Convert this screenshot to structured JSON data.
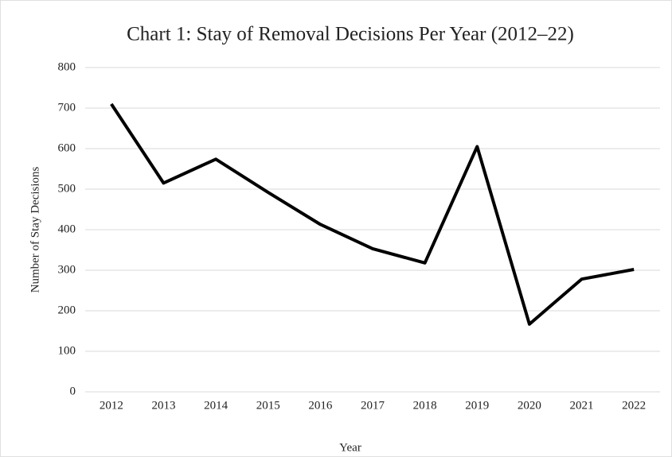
{
  "chart_data": {
    "type": "line",
    "title": "Chart 1: Stay of Removal Decisions Per Year (2012–22)",
    "x_label": "Year",
    "y_label": "Number of Stay Decisions",
    "categories": [
      "2012",
      "2013",
      "2014",
      "2015",
      "2016",
      "2017",
      "2018",
      "2019",
      "2020",
      "2021",
      "2022"
    ],
    "series": [
      {
        "name": "Stay Decisions",
        "color": "#000000",
        "values": [
          710,
          515,
          574,
          492,
          413,
          353,
          318,
          605,
          167,
          278,
          302
        ]
      }
    ],
    "ylim": [
      0,
      800
    ],
    "yticks": [
      0,
      100,
      200,
      300,
      400,
      500,
      600,
      700,
      800
    ],
    "grid": true
  }
}
